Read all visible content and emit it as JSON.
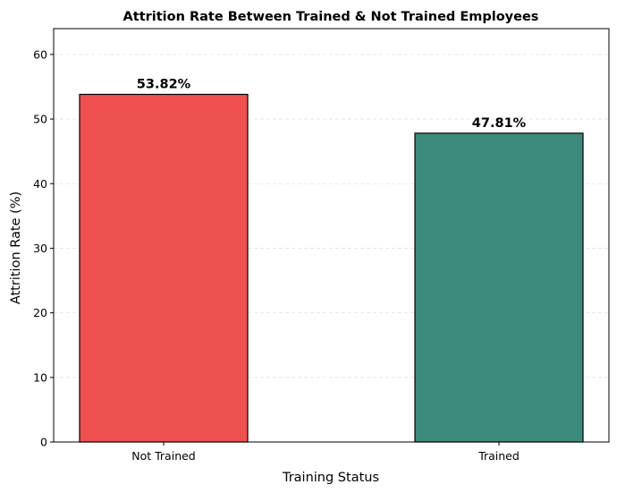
{
  "chart_data": {
    "type": "bar",
    "title": "Attrition Rate Between Trained & Not Trained Employees",
    "xlabel": "Training Status",
    "ylabel": "Attrition Rate (%)",
    "categories": [
      "Not Trained",
      "Trained"
    ],
    "values": [
      53.82,
      47.81
    ],
    "data_labels": [
      "53.82%",
      "47.81%"
    ],
    "colors": [
      "#ef5050",
      "#3d8b7b"
    ],
    "ylim": [
      0,
      64
    ],
    "yticks": [
      0,
      10,
      20,
      30,
      40,
      50,
      60
    ],
    "grid": "y-dashed",
    "legend": "none"
  }
}
